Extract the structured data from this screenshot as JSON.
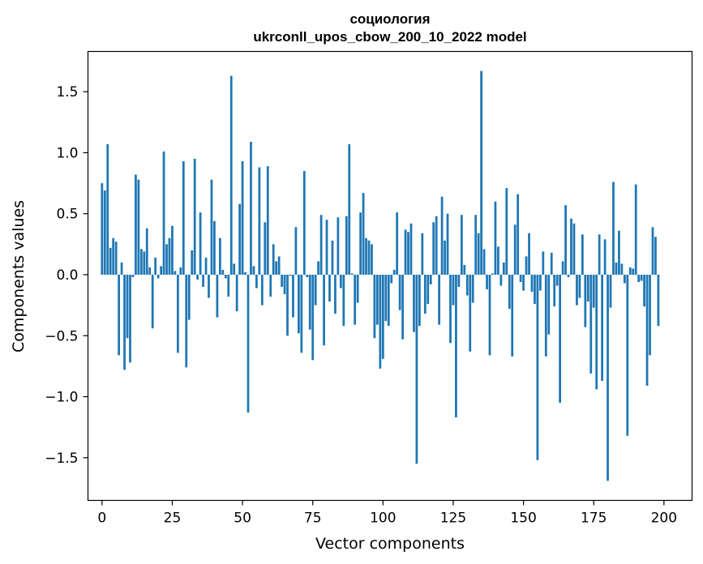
{
  "chart_data": {
    "type": "bar",
    "title": "социология",
    "subtitle": "ukrconll_upos_cbow_200_10_2022 model",
    "xlabel": "Vector components",
    "ylabel": "Components values",
    "xlim": [
      -5,
      210
    ],
    "ylim": [
      -1.85,
      1.83
    ],
    "xticks": [
      0,
      25,
      50,
      75,
      100,
      125,
      150,
      175,
      200
    ],
    "xtick_labels": [
      "0",
      "25",
      "50",
      "75",
      "100",
      "125",
      "150",
      "175",
      "200"
    ],
    "yticks": [
      -1.5,
      -1.0,
      -0.5,
      0.0,
      0.5,
      1.0,
      1.5
    ],
    "ytick_labels": [
      "−1.5",
      "−1.0",
      "−0.5",
      "0.0",
      "0.5",
      "1.0",
      "1.5"
    ],
    "grid": false,
    "legend": "none",
    "bar_color": "#1f77b4",
    "values": [
      0.75,
      0.69,
      1.07,
      0.22,
      0.3,
      0.27,
      -0.66,
      0.1,
      -0.78,
      -0.52,
      -0.72,
      -0.02,
      0.82,
      0.78,
      0.21,
      0.19,
      0.38,
      0.06,
      -0.44,
      0.14,
      -0.03,
      0.07,
      1.01,
      0.25,
      0.3,
      0.4,
      0.03,
      -0.64,
      0.06,
      0.93,
      -0.76,
      -0.37,
      0.2,
      0.95,
      -0.04,
      0.51,
      -0.1,
      0.14,
      -0.19,
      0.78,
      0.44,
      -0.35,
      0.3,
      0.04,
      -0.03,
      -0.18,
      1.63,
      0.09,
      -0.3,
      0.58,
      0.93,
      0.02,
      -1.13,
      1.09,
      0.07,
      -0.11,
      0.88,
      -0.25,
      0.43,
      0.89,
      -0.18,
      0.25,
      0.11,
      0.15,
      -0.1,
      -0.16,
      -0.5,
      -0.01,
      -0.35,
      0.39,
      -0.48,
      -0.64,
      0.85,
      -0.02,
      -0.45,
      -0.7,
      -0.25,
      0.11,
      0.49,
      -0.58,
      0.45,
      -0.22,
      0.28,
      -0.32,
      0.47,
      -0.11,
      -0.42,
      0.48,
      1.07,
      0.01,
      -0.41,
      -0.23,
      0.51,
      0.67,
      0.3,
      0.28,
      0.25,
      -0.52,
      -0.41,
      -0.77,
      -0.69,
      -0.38,
      -0.42,
      -0.07,
      0.04,
      0.51,
      -0.29,
      -0.53,
      0.37,
      0.35,
      0.42,
      -0.47,
      -1.55,
      -0.42,
      0.34,
      -0.32,
      -0.24,
      -0.08,
      0.43,
      0.48,
      -0.41,
      0.64,
      0.28,
      0.5,
      -0.56,
      -0.25,
      -1.17,
      -0.1,
      0.49,
      0.08,
      -0.17,
      -0.63,
      -0.23,
      0.49,
      0.34,
      1.67,
      0.21,
      -0.12,
      -0.66,
      0.01,
      0.6,
      0.23,
      -0.09,
      0.1,
      0.71,
      -0.28,
      -0.67,
      0.41,
      0.66,
      -0.06,
      -0.13,
      0.15,
      0.34,
      -0.14,
      -0.24,
      -1.52,
      -0.13,
      0.19,
      -0.67,
      -0.49,
      0.18,
      -0.26,
      -0.09,
      -1.05,
      0.11,
      0.57,
      -0.02,
      0.46,
      0.42,
      -0.25,
      -0.19,
      0.33,
      -0.43,
      -0.22,
      -0.81,
      -0.27,
      -0.94,
      0.33,
      -0.87,
      0.29,
      -1.69,
      -0.27,
      0.76,
      0.1,
      0.36,
      0.09,
      -0.07,
      -1.32,
      0.06,
      0.05,
      0.74,
      -0.06,
      -0.05,
      -0.26,
      -0.91,
      -0.66,
      0.39,
      0.31,
      -0.42
    ]
  }
}
